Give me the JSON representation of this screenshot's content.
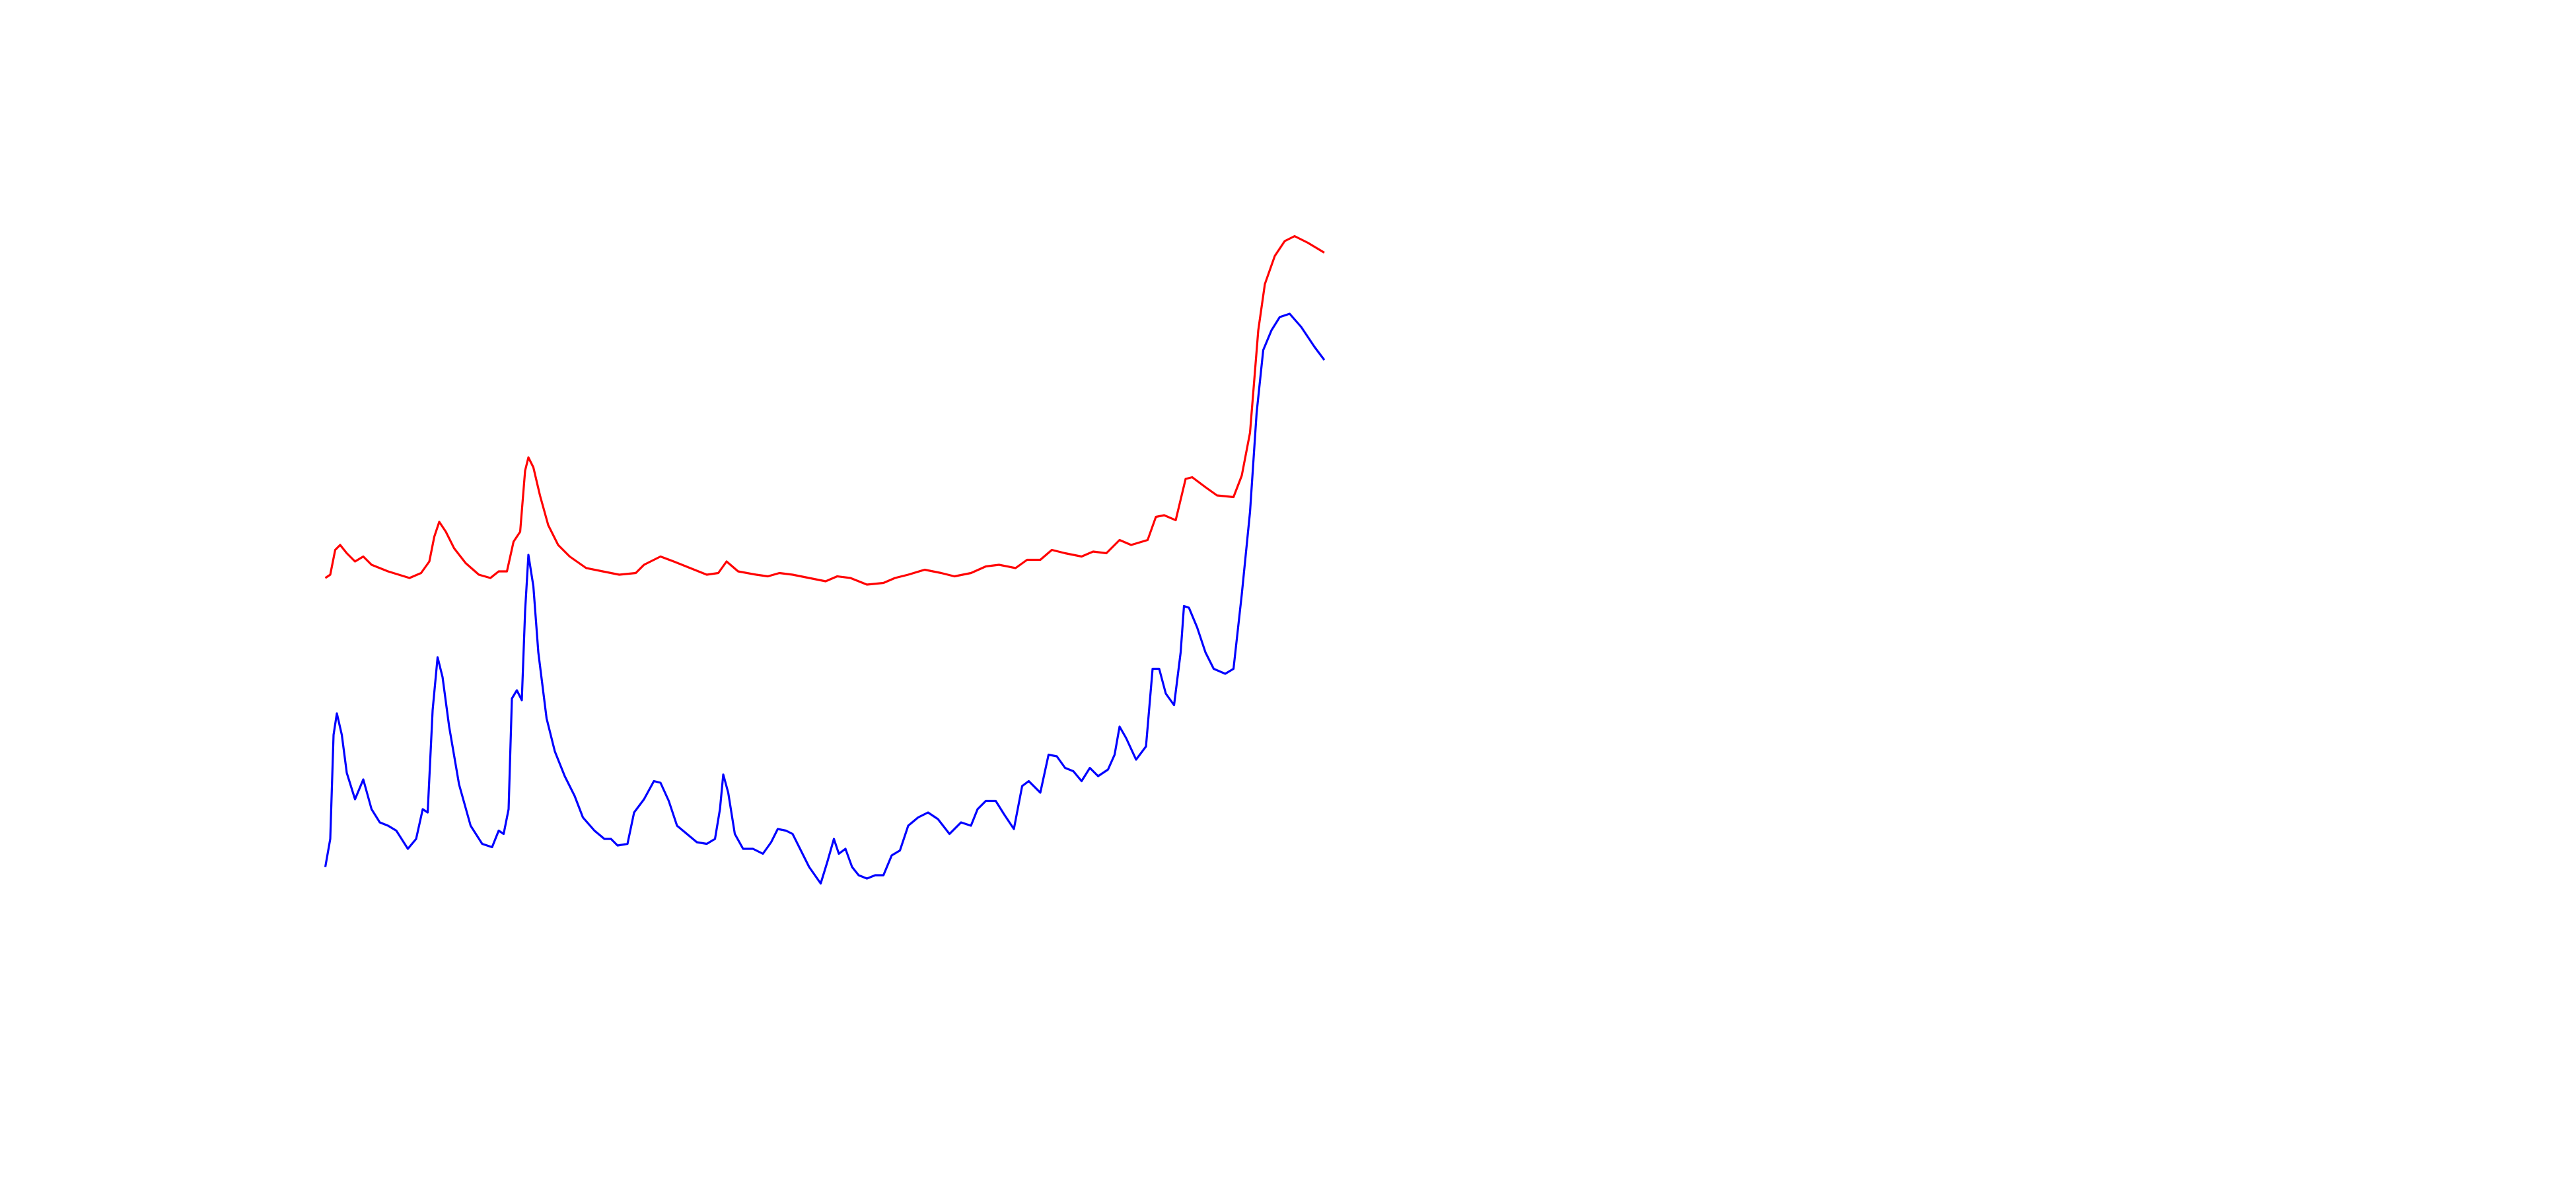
{
  "chart_data": {
    "type": "line",
    "xlim": [
      0,
      1560
    ],
    "ylim": [
      0,
      720
    ],
    "series": [
      {
        "color": "#ff0000",
        "x": [
          197,
          200,
          203,
          206,
          210,
          215,
          220,
          225,
          235,
          248,
          255,
          260,
          263,
          266,
          270,
          275,
          282,
          290,
          297,
          302,
          307,
          311,
          315,
          318,
          320,
          323,
          327,
          332,
          338,
          345,
          355,
          365,
          375,
          385,
          390,
          400,
          408,
          418,
          428,
          435,
          440,
          447,
          458,
          465,
          472,
          480,
          490,
          500,
          507,
          515,
          525,
          535,
          542,
          550,
          560,
          570,
          578,
          588,
          597,
          605,
          615,
          622,
          630,
          637,
          645,
          655,
          662,
          670,
          678,
          685,
          695,
          700,
          705,
          712,
          718,
          722,
          730,
          737,
          747,
          752,
          757,
          762,
          766,
          772,
          778,
          784,
          792,
          802
        ],
        "values": [
          370,
          372,
          387,
          390,
          385,
          380,
          383,
          378,
          374,
          370,
          373,
          380,
          395,
          404,
          398,
          388,
          379,
          372,
          370,
          374,
          374,
          392,
          398,
          435,
          443,
          437,
          420,
          402,
          390,
          383,
          376,
          374,
          372,
          373,
          378,
          383,
          380,
          376,
          372,
          373,
          380,
          374,
          372,
          371,
          373,
          372,
          370,
          368,
          371,
          370,
          366,
          367,
          370,
          372,
          375,
          373,
          371,
          373,
          377,
          378,
          376,
          381,
          381,
          387,
          385,
          383,
          386,
          385,
          393,
          390,
          393,
          407,
          408,
          405,
          430,
          431,
          425,
          420,
          419,
          432,
          458,
          520,
          548,
          565,
          574,
          577,
          573,
          567
        ]
      },
      {
        "color": "#0000ff",
        "x": [
          197,
          200,
          202,
          204,
          207,
          210,
          215,
          220,
          225,
          230,
          235,
          240,
          247,
          252,
          256,
          259,
          262,
          265,
          268,
          272,
          278,
          285,
          292,
          298,
          302,
          305,
          308,
          310,
          313,
          316,
          318,
          320,
          323,
          326,
          331,
          336,
          342,
          348,
          353,
          360,
          366,
          370,
          374,
          380,
          384,
          390,
          396,
          400,
          405,
          410,
          416,
          422,
          428,
          433,
          436,
          438,
          441,
          445,
          450,
          456,
          462,
          467,
          471,
          476,
          480,
          485,
          490,
          497,
          501,
          505,
          508,
          512,
          516,
          520,
          525,
          530,
          535,
          540,
          545,
          550,
          556,
          562,
          568,
          575,
          582,
          588,
          592,
          597,
          603,
          608,
          614,
          619,
          623,
          630,
          635,
          640,
          645,
          650,
          655,
          660,
          665,
          671,
          675,
          678,
          682,
          688,
          694,
          698,
          702,
          706,
          711,
          715,
          717,
          720,
          725,
          730,
          735,
          742,
          747,
          752,
          757,
          761,
          765,
          770,
          775,
          781,
          788,
          796,
          802
        ],
        "values": [
          195,
          212,
          275,
          288,
          275,
          252,
          236,
          248,
          230,
          222,
          220,
          217,
          206,
          212,
          230,
          228,
          290,
          322,
          310,
          280,
          245,
          220,
          209,
          207,
          217,
          215,
          230,
          297,
          302,
          296,
          350,
          384,
          365,
          325,
          285,
          265,
          250,
          238,
          225,
          217,
          212,
          212,
          208,
          209,
          228,
          236,
          247,
          246,
          235,
          220,
          215,
          210,
          209,
          212,
          230,
          251,
          240,
          215,
          206,
          206,
          203,
          210,
          218,
          217,
          215,
          205,
          195,
          185,
          198,
          212,
          203,
          206,
          195,
          190,
          188,
          190,
          190,
          202,
          205,
          220,
          225,
          228,
          224,
          215,
          222,
          220,
          230,
          235,
          235,
          227,
          218,
          244,
          247,
          240,
          263,
          262,
          255,
          253,
          247,
          255,
          250,
          254,
          263,
          280,
          273,
          260,
          268,
          315,
          315,
          300,
          293,
          325,
          353,
          352,
          340,
          325,
          315,
          312,
          315,
          360,
          410,
          470,
          508,
          520,
          528,
          530,
          522,
          510,
          502
        ]
      }
    ]
  }
}
